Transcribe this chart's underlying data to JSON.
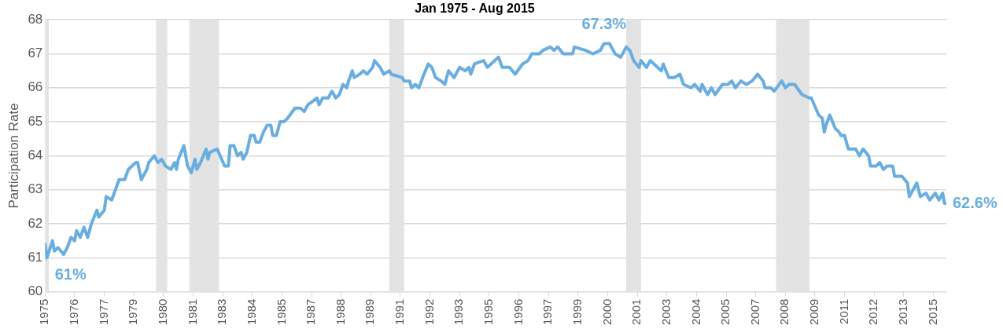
{
  "chart_data": {
    "type": "line",
    "title": "Jan 1975 - Aug 2015",
    "ylabel": "Participation Rate",
    "ylim": [
      60,
      68
    ],
    "yticks": [
      60,
      61,
      62,
      63,
      64,
      65,
      66,
      67,
      68
    ],
    "xlim": [
      "1975-01",
      "2015-08"
    ],
    "xticks": [
      {
        "value": "1975-01",
        "label": "1975"
      },
      {
        "value": "1976-05",
        "label": "1976"
      },
      {
        "value": "1977-09",
        "label": "1977"
      },
      {
        "value": "1979-01",
        "label": "1979"
      },
      {
        "value": "1980-05",
        "label": "1980"
      },
      {
        "value": "1981-09",
        "label": "1981"
      },
      {
        "value": "1983-01",
        "label": "1983"
      },
      {
        "value": "1984-05",
        "label": "1984"
      },
      {
        "value": "1985-09",
        "label": "1985"
      },
      {
        "value": "1987-01",
        "label": "1987"
      },
      {
        "value": "1988-05",
        "label": "1988"
      },
      {
        "value": "1989-09",
        "label": "1989"
      },
      {
        "value": "1991-01",
        "label": "1991"
      },
      {
        "value": "1992-05",
        "label": "1992"
      },
      {
        "value": "1993-09",
        "label": "1993"
      },
      {
        "value": "1995-01",
        "label": "1995"
      },
      {
        "value": "1996-05",
        "label": "1996"
      },
      {
        "value": "1997-09",
        "label": "1997"
      },
      {
        "value": "1999-01",
        "label": "1999"
      },
      {
        "value": "2000-05",
        "label": "2000"
      },
      {
        "value": "2001-09",
        "label": "2001"
      },
      {
        "value": "2003-01",
        "label": "2003"
      },
      {
        "value": "2004-05",
        "label": "2004"
      },
      {
        "value": "2005-09",
        "label": "2005"
      },
      {
        "value": "2007-01",
        "label": "2007"
      },
      {
        "value": "2008-05",
        "label": "2008"
      },
      {
        "value": "2009-09",
        "label": "2009"
      },
      {
        "value": "2011-01",
        "label": "2011"
      },
      {
        "value": "2012-05",
        "label": "2012"
      },
      {
        "value": "2013-09",
        "label": "2013"
      },
      {
        "value": "2015-01",
        "label": "2015"
      }
    ],
    "grid": "y",
    "legend": false,
    "marker": "none",
    "line_style": "solid",
    "bands": [
      {
        "axis": "x",
        "from": "1975-01",
        "to": "1975-03",
        "color": "#e3e3e3"
      },
      {
        "axis": "x",
        "from": "1980-01",
        "to": "1980-07",
        "color": "#e3e3e3"
      },
      {
        "axis": "x",
        "from": "1981-07",
        "to": "1982-11",
        "color": "#e3e3e3"
      },
      {
        "axis": "x",
        "from": "1990-07",
        "to": "1991-03",
        "color": "#e3e3e3"
      },
      {
        "axis": "x",
        "from": "2001-03",
        "to": "2001-11",
        "color": "#e3e3e3"
      },
      {
        "axis": "x",
        "from": "2007-12",
        "to": "2009-06",
        "color": "#e3e3e3"
      }
    ],
    "annotations": [
      {
        "text": "61%",
        "x": "1975-02",
        "y": 61
      },
      {
        "text": "67.3%",
        "x": "2000-03",
        "y": 67.3
      },
      {
        "text": "62.6%",
        "x": "2015-08",
        "y": 62.6
      }
    ],
    "series": [
      {
        "color": "#6aaee0",
        "x": [
          "1975-01",
          "1975-02",
          "1975-05",
          "1975-06",
          "1975-08",
          "1975-11",
          "1976-01",
          "1976-03",
          "1976-05",
          "1976-06",
          "1976-08",
          "1976-10",
          "1976-12",
          "1977-02",
          "1977-05",
          "1977-06",
          "1977-09",
          "1977-10",
          "1978-01",
          "1978-05",
          "1978-08",
          "1978-10",
          "1979-02",
          "1979-03",
          "1979-05",
          "1979-08",
          "1979-09",
          "1979-12",
          "1980-02",
          "1980-04",
          "1980-06",
          "1980-09",
          "1980-11",
          "1980-12",
          "1981-01",
          "1981-04",
          "1981-06",
          "1981-08",
          "1981-10",
          "1981-11",
          "1982-01",
          "1982-04",
          "1982-05",
          "1982-06",
          "1982-10",
          "1983-02",
          "1983-04",
          "1983-05",
          "1983-07",
          "1983-09",
          "1983-11",
          "1983-12",
          "1984-02",
          "1984-04",
          "1984-06",
          "1984-07",
          "1984-09",
          "1984-11",
          "1985-01",
          "1985-03",
          "1985-04",
          "1985-06",
          "1985-08",
          "1985-10",
          "1985-12",
          "1986-04",
          "1986-07",
          "1986-09",
          "1986-11",
          "1987-04",
          "1987-05",
          "1987-07",
          "1987-10",
          "1987-12",
          "1988-02",
          "1988-04",
          "1988-06",
          "1988-08",
          "1988-09",
          "1988-11",
          "1988-12",
          "1989-03",
          "1989-05",
          "1989-07",
          "1989-10",
          "1989-11",
          "1990-02",
          "1990-04",
          "1990-07",
          "1990-08",
          "1991-02",
          "1991-03",
          "1991-06",
          "1991-07",
          "1991-09",
          "1991-11",
          "1992-01",
          "1992-04",
          "1992-06",
          "1992-08",
          "1992-11",
          "1993-01",
          "1993-03",
          "1993-06",
          "1993-09",
          "1993-12",
          "1994-02",
          "1994-03",
          "1994-05",
          "1994-10",
          "1994-12",
          "1995-06",
          "1995-08",
          "1995-12",
          "1996-03",
          "1996-07",
          "1996-10",
          "1996-12",
          "1997-04",
          "1997-06",
          "1997-10",
          "1997-12",
          "1998-02",
          "1998-05",
          "1998-10",
          "1998-11",
          "1999-05",
          "1999-09",
          "2000-01",
          "2000-03",
          "2000-06",
          "2000-09",
          "2000-12",
          "2001-03",
          "2001-05",
          "2001-07",
          "2001-10",
          "2001-11",
          "2002-02",
          "2002-04",
          "2002-06",
          "2002-10",
          "2002-11",
          "2003-02",
          "2003-05",
          "2003-08",
          "2003-10",
          "2004-02",
          "2004-04",
          "2004-07",
          "2004-08",
          "2004-11",
          "2005-01",
          "2005-03",
          "2005-07",
          "2005-10",
          "2005-12",
          "2006-02",
          "2006-05",
          "2006-08",
          "2006-11",
          "2007-02",
          "2007-05",
          "2007-06",
          "2007-09",
          "2007-11",
          "2008-03",
          "2008-05",
          "2008-07",
          "2008-10",
          "2009-02",
          "2009-06",
          "2009-07",
          "2009-11",
          "2010-01",
          "2010-02",
          "2010-03",
          "2010-05",
          "2010-08",
          "2010-10",
          "2010-11",
          "2011-01",
          "2011-03",
          "2011-07",
          "2011-09",
          "2011-11",
          "2012-02",
          "2012-03",
          "2012-06",
          "2012-08",
          "2012-10",
          "2012-12",
          "2013-03",
          "2013-04",
          "2013-08",
          "2013-11",
          "2013-12",
          "2014-01",
          "2014-04",
          "2014-06",
          "2014-09",
          "2014-11",
          "2015-02",
          "2015-04",
          "2015-06",
          "2015-07",
          "2015-08"
        ],
        "values": [
          61.4,
          61.0,
          61.5,
          61.2,
          61.3,
          61.1,
          61.3,
          61.6,
          61.5,
          61.8,
          61.6,
          61.9,
          61.6,
          62.0,
          62.4,
          62.2,
          62.4,
          62.8,
          62.7,
          63.3,
          63.3,
          63.6,
          63.8,
          63.8,
          63.3,
          63.6,
          63.8,
          64.0,
          63.8,
          63.9,
          63.7,
          63.6,
          63.8,
          63.6,
          63.9,
          64.3,
          63.7,
          63.5,
          63.9,
          63.6,
          63.8,
          64.2,
          63.9,
          64.1,
          64.2,
          63.7,
          63.7,
          64.3,
          64.3,
          64.0,
          64.1,
          63.9,
          64.1,
          64.6,
          64.6,
          64.4,
          64.4,
          64.7,
          64.9,
          64.9,
          64.6,
          64.6,
          65.0,
          65.0,
          65.1,
          65.4,
          65.4,
          65.3,
          65.5,
          65.7,
          65.5,
          65.7,
          65.7,
          65.9,
          65.7,
          65.8,
          66.1,
          66.0,
          66.2,
          66.5,
          66.3,
          66.4,
          66.5,
          66.4,
          66.6,
          66.8,
          66.6,
          66.4,
          66.5,
          66.4,
          66.3,
          66.2,
          66.2,
          66.0,
          66.1,
          66.0,
          66.3,
          66.7,
          66.6,
          66.3,
          66.2,
          66.1,
          66.5,
          66.3,
          66.6,
          66.5,
          66.6,
          66.4,
          66.7,
          66.8,
          66.6,
          66.9,
          66.6,
          66.6,
          66.4,
          66.7,
          66.8,
          67.0,
          67.0,
          67.1,
          67.2,
          67.1,
          67.2,
          67.0,
          67.0,
          67.2,
          67.1,
          67.0,
          67.1,
          67.3,
          67.3,
          67.0,
          66.9,
          67.2,
          67.1,
          66.8,
          66.6,
          66.8,
          66.6,
          66.8,
          66.7,
          66.5,
          66.7,
          66.3,
          66.3,
          66.4,
          66.1,
          66.0,
          66.1,
          65.9,
          66.1,
          65.8,
          66.0,
          65.8,
          66.1,
          66.1,
          66.2,
          66.0,
          66.2,
          66.1,
          66.2,
          66.4,
          66.2,
          66.0,
          66.0,
          65.9,
          66.2,
          66.0,
          66.1,
          66.1,
          65.8,
          65.7,
          65.7,
          65.2,
          65.1,
          64.7,
          64.9,
          65.2,
          64.8,
          64.7,
          64.6,
          64.6,
          64.2,
          64.2,
          64.0,
          64.2,
          64.0,
          63.7,
          63.7,
          63.8,
          63.6,
          63.7,
          63.7,
          63.4,
          63.4,
          63.2,
          62.8,
          62.9,
          63.2,
          62.8,
          62.9,
          62.7,
          62.9,
          62.7,
          62.9,
          62.6,
          62.6
        ]
      }
    ]
  }
}
